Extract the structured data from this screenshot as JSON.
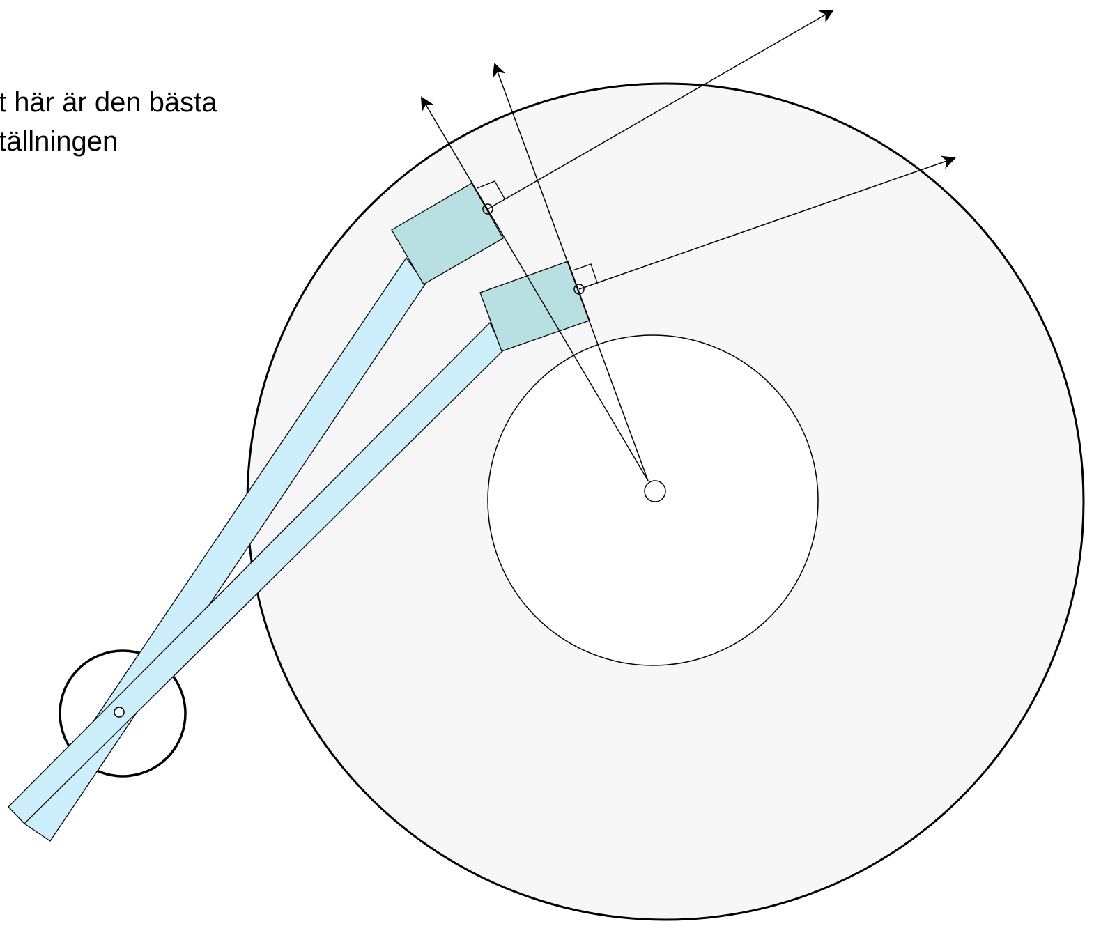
{
  "caption": {
    "lines": [
      "t här är den bästa",
      "tällningen"
    ]
  }
}
